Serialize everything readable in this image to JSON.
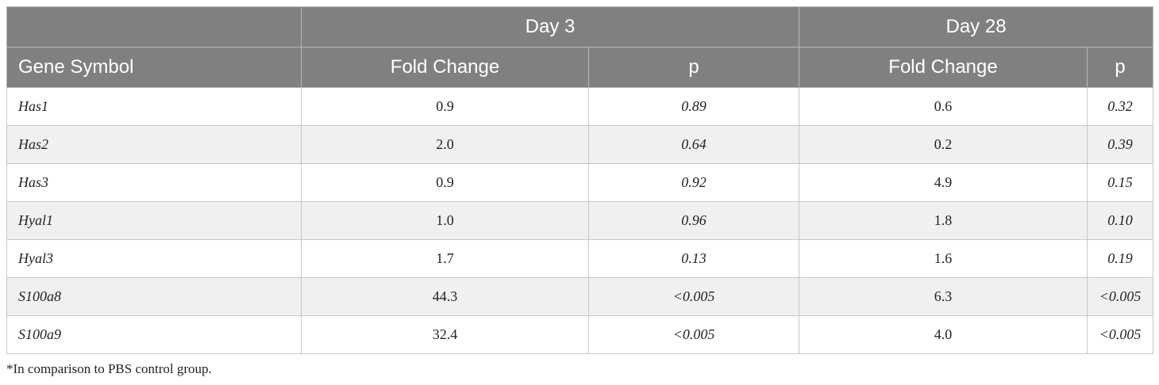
{
  "header": {
    "groups": [
      "Day 3",
      "Day 28"
    ],
    "columns": [
      "Gene Symbol",
      "Fold Change",
      "p",
      "Fold Change",
      "p"
    ]
  },
  "table": {
    "rows": [
      [
        "Has1",
        "0.9",
        "0.89",
        "0.6",
        "0.32"
      ],
      [
        "Has2",
        "2.0",
        "0.64",
        "0.2",
        "0.39"
      ],
      [
        "Has3",
        "0.9",
        "0.92",
        "4.9",
        "0.15"
      ],
      [
        "Hyal1",
        "1.0",
        "0.96",
        "1.8",
        "0.10"
      ],
      [
        "Hyal3",
        "1.7",
        "0.13",
        "1.6",
        "0.19"
      ],
      [
        "S100a8",
        "44.3",
        "<0.005",
        "6.3",
        "<0.005"
      ],
      [
        "S100a9",
        "32.4",
        "<0.005",
        "4.0",
        "<0.005"
      ]
    ]
  },
  "footnote": "*In comparison to PBS control group."
}
